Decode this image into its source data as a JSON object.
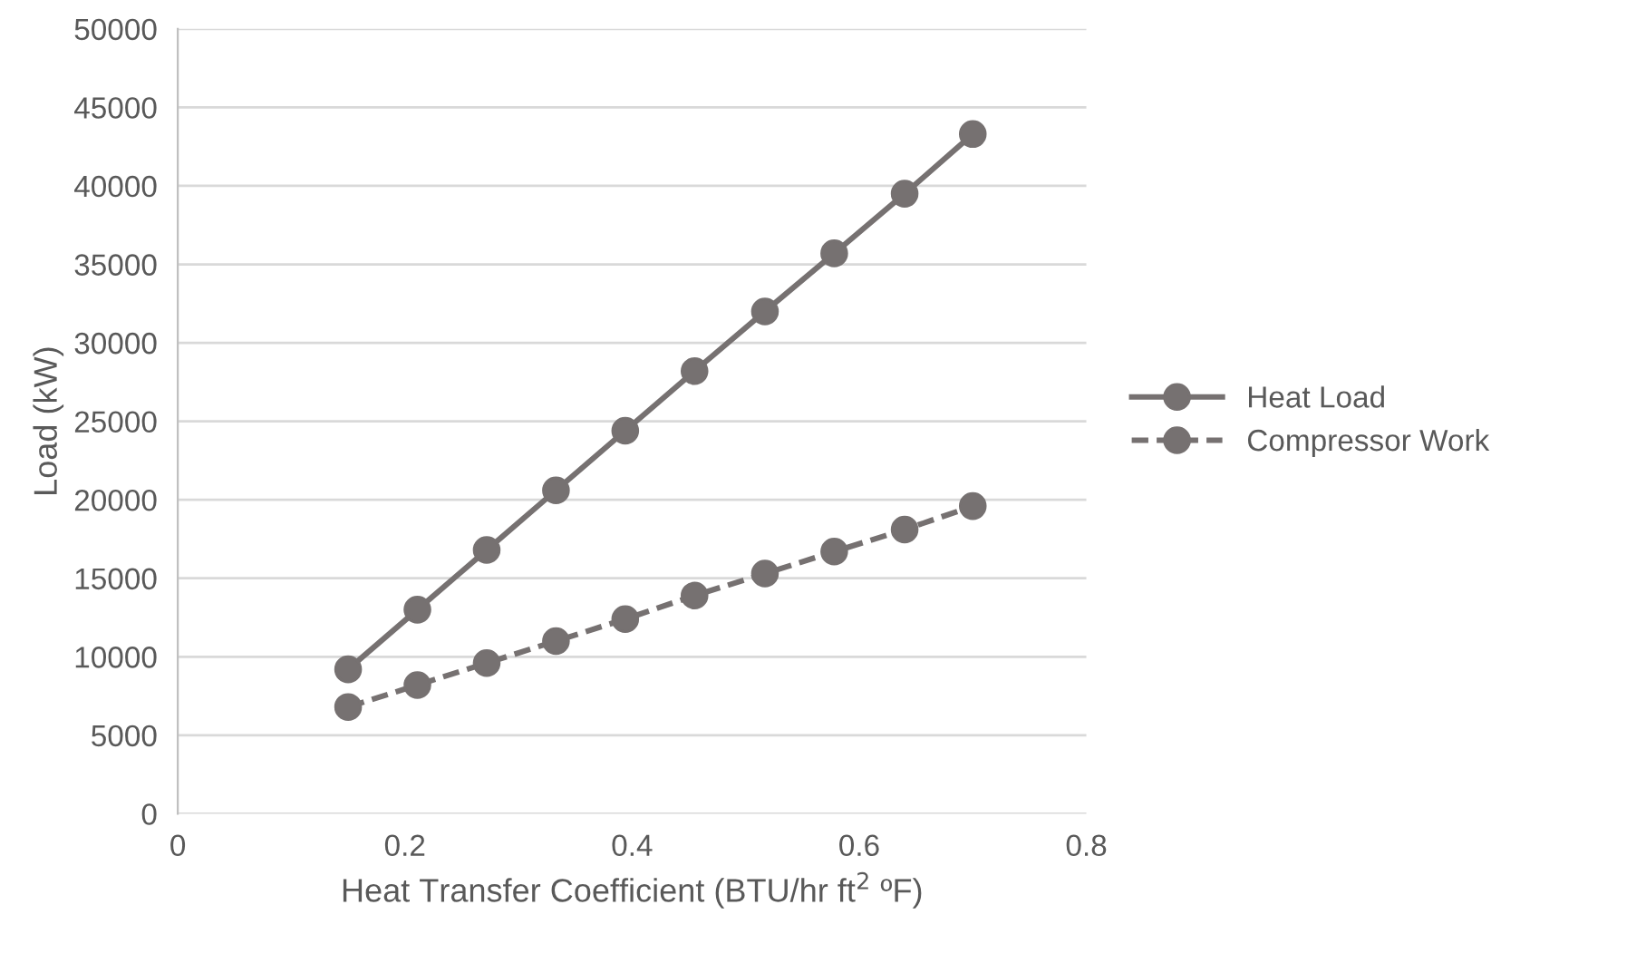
{
  "chart_data": {
    "type": "line",
    "xlabel": "Heat Transfer Coefficient (BTU/hr ft$^{2}$ ºF)",
    "ylabel": "Load (kW)",
    "x": [
      0.15,
      0.211,
      0.272,
      0.333,
      0.394,
      0.455,
      0.517,
      0.578,
      0.64,
      0.7
    ],
    "series": [
      {
        "name": "Heat Load",
        "color": "#767171",
        "line_style": "solid",
        "values": [
          9200,
          13000,
          16800,
          20600,
          24400,
          28200,
          32000,
          35700,
          39500,
          43300
        ]
      },
      {
        "name": "Compressor Work",
        "color": "#767171",
        "line_style": "dashed",
        "values": [
          6800,
          8200,
          9600,
          11000,
          12400,
          13900,
          15300,
          16700,
          18100,
          19600
        ]
      }
    ],
    "xlim": [
      0,
      0.8
    ],
    "xticks": [
      0,
      0.2,
      0.4,
      0.6,
      0.8
    ],
    "ylim": [
      0,
      50000
    ],
    "yticks": [
      0,
      5000,
      10000,
      15000,
      20000,
      25000,
      30000,
      35000,
      40000,
      45000,
      50000
    ],
    "grid": "y",
    "legend": "right",
    "marker": "circle"
  }
}
